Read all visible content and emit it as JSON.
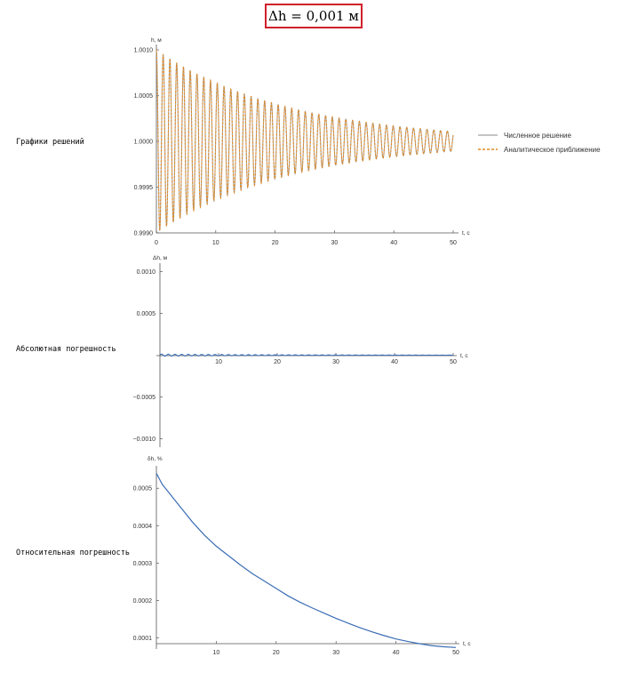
{
  "header": {
    "title": "Δh = 0,001 м"
  },
  "rows": {
    "solutions_label": "Графики решений",
    "abs_error_label": "Абсолютная погрешность",
    "rel_error_label": "Относительная погрешность"
  },
  "colors": {
    "numeric": "#a0a0a0",
    "analytic": "#e08a24",
    "error": "#3a6db5",
    "header_border": "#d0202a"
  },
  "chart_data": [
    {
      "type": "line",
      "ylabel": "h, м",
      "xlabel": "t, с",
      "xlim": [
        0,
        50
      ],
      "ylim": [
        0.999,
        1.001
      ],
      "xticks": [
        "0",
        "10",
        "20",
        "30",
        "40",
        "50"
      ],
      "yticks": [
        "0.9990",
        "0.9995",
        "1.0000",
        "1.0005",
        "1.0010"
      ],
      "legend_position": "right",
      "series": [
        {
          "name": "Численное решение",
          "style": "solid",
          "color": "#a0a0a0",
          "model": {
            "mean": 1.0,
            "amplitude0": 0.001,
            "decay_rate": 0.0445,
            "period": 1.14,
            "phase": "cos"
          }
        },
        {
          "name": "Аналитическое приближение",
          "style": "dashed",
          "color": "#e08a24",
          "model": {
            "mean": 1.0,
            "amplitude0": 0.001,
            "decay_rate": 0.0445,
            "period": 1.14,
            "phase": "cos"
          }
        }
      ]
    },
    {
      "type": "line",
      "ylabel": "Δh, м",
      "xlabel": "t, с",
      "xlim": [
        0,
        50
      ],
      "ylim": [
        -0.0011,
        0.0011
      ],
      "xticks": [
        "10",
        "20",
        "30",
        "40",
        "50"
      ],
      "yticks": [
        "−0.0010",
        "−0.0005",
        "0.0005",
        "0.0010"
      ],
      "series": [
        {
          "name": "",
          "color": "#3a6db5",
          "model": {
            "amplitude0": 1.2e-05,
            "decay_rate": 0.045,
            "period": 1.14
          }
        }
      ]
    },
    {
      "type": "line",
      "ylabel": "δh, %",
      "xlabel": "t, с",
      "xlim": [
        0,
        50
      ],
      "ylim": [
        7e-05,
        0.00056
      ],
      "xticks": [
        "10",
        "20",
        "30",
        "40",
        "50"
      ],
      "yticks": [
        "0.0001",
        "0.0002",
        "0.0003",
        "0.0004",
        "0.0005"
      ],
      "series": [
        {
          "name": "",
          "color": "#3a6db5",
          "x": [
            0,
            1,
            2,
            3,
            4,
            5,
            6,
            8,
            10,
            12,
            14,
            16,
            18,
            20,
            22,
            24,
            26,
            28,
            30,
            32,
            34,
            36,
            38,
            40,
            42,
            44,
            46,
            48,
            50
          ],
          "y": [
            0.00054,
            0.00051,
            0.00049,
            0.00047,
            0.00045,
            0.00043,
            0.00041,
            0.000375,
            0.000345,
            0.00032,
            0.000295,
            0.000272,
            0.000252,
            0.000232,
            0.000212,
            0.000195,
            0.00018,
            0.000166,
            0.000152,
            0.000139,
            0.000127,
            0.000116,
            0.000106,
            9.7e-05,
            9e-05,
            8.4e-05,
            7.9e-05,
            7.6e-05,
            7.4e-05
          ]
        }
      ]
    }
  ]
}
